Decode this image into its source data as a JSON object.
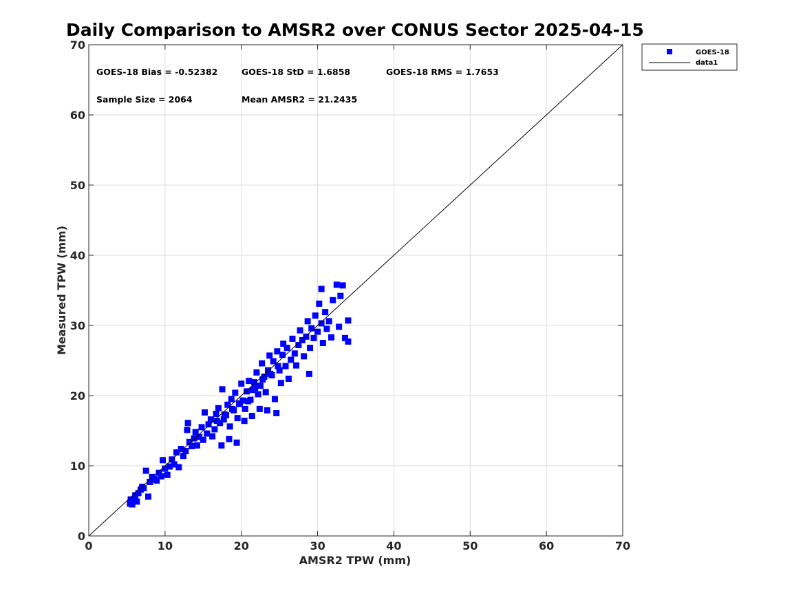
{
  "chart_data": {
    "type": "scatter",
    "title": "Daily Comparison to AMSR2 over CONUS Sector 2025-04-15",
    "xlabel": "AMSR2 TPW (mm)",
    "ylabel": "Measured TPW (mm)",
    "xlim": [
      0,
      70
    ],
    "ylim": [
      0,
      70
    ],
    "xticks": [
      "0",
      "10",
      "20",
      "30",
      "40",
      "50",
      "60",
      "70"
    ],
    "yticks": [
      "0",
      "10",
      "20",
      "30",
      "40",
      "50",
      "60",
      "70"
    ],
    "grid": true,
    "legend_position": "outside-top-right",
    "series": [
      {
        "name": "GOES-18",
        "marker": "square",
        "color": "#0000ff",
        "sample_size": 2064,
        "bias": -0.52382,
        "std": 1.6858,
        "points": [
          [
            5.4,
            4.6
          ],
          [
            5.5,
            5.2
          ],
          [
            5.7,
            4.5
          ],
          [
            5.9,
            5.0
          ],
          [
            6.1,
            5.8
          ],
          [
            6.3,
            4.9
          ],
          [
            6.5,
            6.1
          ],
          [
            6.8,
            6.6
          ],
          [
            7.0,
            7.0
          ],
          [
            7.2,
            6.8
          ],
          [
            7.5,
            9.3
          ],
          [
            7.8,
            5.6
          ],
          [
            8.0,
            7.7
          ],
          [
            8.3,
            8.4
          ],
          [
            8.6,
            8.1
          ],
          [
            8.9,
            7.9
          ],
          [
            9.2,
            9.0
          ],
          [
            9.5,
            8.5
          ],
          [
            9.7,
            10.8
          ],
          [
            10.0,
            9.6
          ],
          [
            10.3,
            8.7
          ],
          [
            10.6,
            9.9
          ],
          [
            10.9,
            10.9
          ],
          [
            11.2,
            10.2
          ],
          [
            11.5,
            11.9
          ],
          [
            11.8,
            9.8
          ],
          [
            12.1,
            12.4
          ],
          [
            12.4,
            11.4
          ],
          [
            12.7,
            12.1
          ],
          [
            12.9,
            15.1
          ],
          [
            13.0,
            16.1
          ],
          [
            13.2,
            13.4
          ],
          [
            13.5,
            12.8
          ],
          [
            13.8,
            13.9
          ],
          [
            14.0,
            14.8
          ],
          [
            14.2,
            12.9
          ],
          [
            14.5,
            14.1
          ],
          [
            14.8,
            15.5
          ],
          [
            15.0,
            13.7
          ],
          [
            15.2,
            17.6
          ],
          [
            15.5,
            14.6
          ],
          [
            15.7,
            15.9
          ],
          [
            16.0,
            16.6
          ],
          [
            16.2,
            14.2
          ],
          [
            16.5,
            15.2
          ],
          [
            16.7,
            17.4
          ],
          [
            17.0,
            18.2
          ],
          [
            17.2,
            16.1
          ],
          [
            17.4,
            12.9
          ],
          [
            17.5,
            20.9
          ],
          [
            17.7,
            16.6
          ],
          [
            18.0,
            17.2
          ],
          [
            18.2,
            18.7
          ],
          [
            18.4,
            13.8
          ],
          [
            18.5,
            15.6
          ],
          [
            18.7,
            19.5
          ],
          [
            19.0,
            17.9
          ],
          [
            19.2,
            20.4
          ],
          [
            19.4,
            13.3
          ],
          [
            19.5,
            16.8
          ],
          [
            19.7,
            18.8
          ],
          [
            20.0,
            21.7
          ],
          [
            20.2,
            19.3
          ],
          [
            20.4,
            16.4
          ],
          [
            20.5,
            18.1
          ],
          [
            20.7,
            20.6
          ],
          [
            21.0,
            22.1
          ],
          [
            21.2,
            19.4
          ],
          [
            21.4,
            17.1
          ],
          [
            21.5,
            20.8
          ],
          [
            21.7,
            21.9
          ],
          [
            22.0,
            23.3
          ],
          [
            22.2,
            20.2
          ],
          [
            22.4,
            18.1
          ],
          [
            22.5,
            21.4
          ],
          [
            22.7,
            24.6
          ],
          [
            23.0,
            22.7
          ],
          [
            23.2,
            20.5
          ],
          [
            23.4,
            17.9
          ],
          [
            23.5,
            23.6
          ],
          [
            23.7,
            25.7
          ],
          [
            24.0,
            22.9
          ],
          [
            24.2,
            24.9
          ],
          [
            24.4,
            19.5
          ],
          [
            24.6,
            17.5
          ],
          [
            24.7,
            26.3
          ],
          [
            25.0,
            23.6
          ],
          [
            25.2,
            21.8
          ],
          [
            25.4,
            25.8
          ],
          [
            25.5,
            27.4
          ],
          [
            25.8,
            24.2
          ],
          [
            26.0,
            26.8
          ],
          [
            26.2,
            22.4
          ],
          [
            26.5,
            25.1
          ],
          [
            26.7,
            28.1
          ],
          [
            27.0,
            26.0
          ],
          [
            27.2,
            24.3
          ],
          [
            27.5,
            27.2
          ],
          [
            27.7,
            29.3
          ],
          [
            28.0,
            27.9
          ],
          [
            28.2,
            25.6
          ],
          [
            28.5,
            28.4
          ],
          [
            28.7,
            30.6
          ],
          [
            28.9,
            23.1
          ],
          [
            29.0,
            26.8
          ],
          [
            29.2,
            29.6
          ],
          [
            29.5,
            28.2
          ],
          [
            29.7,
            31.4
          ],
          [
            30.0,
            29.1
          ],
          [
            30.2,
            33.1
          ],
          [
            30.5,
            30.3
          ],
          [
            30.7,
            27.5
          ],
          [
            31.0,
            31.9
          ],
          [
            31.2,
            29.5
          ],
          [
            31.5,
            30.6
          ],
          [
            31.8,
            28.3
          ],
          [
            32.0,
            33.6
          ],
          [
            32.5,
            35.8
          ],
          [
            32.8,
            29.8
          ],
          [
            33.0,
            34.2
          ],
          [
            33.3,
            35.7
          ],
          [
            33.6,
            28.2
          ],
          [
            34.0,
            30.7
          ],
          [
            34.0,
            27.7
          ],
          [
            30.5,
            35.2
          ],
          [
            20.9,
            19.2
          ],
          [
            21.8,
            21.1
          ],
          [
            22.8,
            22.3
          ],
          [
            23.8,
            23.1
          ],
          [
            24.8,
            24.2
          ],
          [
            19.8,
            18.9
          ],
          [
            18.8,
            18.1
          ],
          [
            17.8,
            17.3
          ],
          [
            16.8,
            16.4
          ]
        ]
      },
      {
        "name": "data1",
        "type": "line",
        "color": "#000000",
        "x": [
          0,
          70
        ],
        "y": [
          0,
          70
        ]
      }
    ],
    "annotations": {
      "bias": "GOES-18 Bias = -0.52382",
      "std": "GOES-18 StD = 1.6858",
      "rms": "GOES-18 RMS = 1.7653",
      "sample_size": "Sample Size = 2064",
      "mean": "Mean AMSR2 = 21.2435"
    }
  }
}
